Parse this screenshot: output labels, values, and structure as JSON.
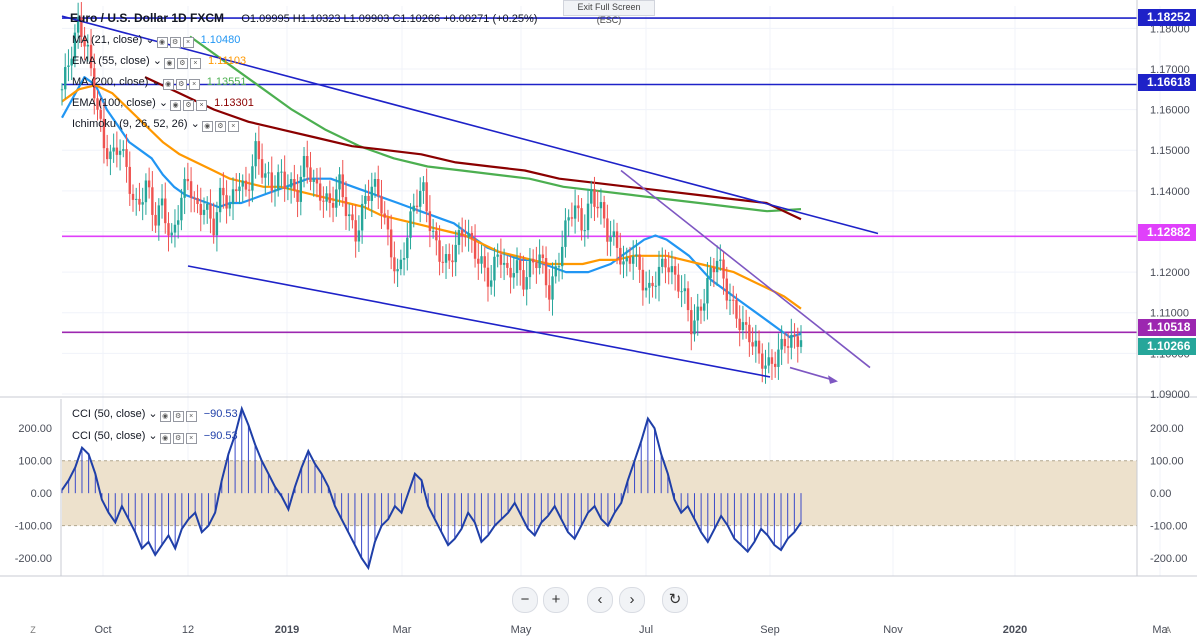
{
  "header": {
    "title": "Euro / U.S. Dollar  1D  FXCM",
    "ohlc": "O1.09995  H1.10323  L1.09903  C1.10266  +0.00271 (+0.25%)"
  },
  "exit_fullscreen_label": "Exit Full Screen (ESC)",
  "indicators": [
    {
      "label": "MA (21, close)",
      "value": "1.10480",
      "color": "#2196f3"
    },
    {
      "label": "EMA (55, close)",
      "value": "1.11103",
      "color": "#ff9800"
    },
    {
      "label": "MA (200, close)",
      "value": "1.13551",
      "color": "#4caf50"
    },
    {
      "label": "EMA (100, close)",
      "value": "1.13301",
      "color": "#8b0000"
    },
    {
      "label": "Ichimoku (9, 26, 52, 26)",
      "value": "",
      "color": "#2196f3"
    }
  ],
  "cci_legends": [
    {
      "label": "CCI (50, close)",
      "value": "−90.53"
    },
    {
      "label": "CCI (50, close)",
      "value": "−90.53"
    }
  ],
  "nav_buttons": [
    "−",
    "+",
    "‹",
    "›",
    "↻"
  ],
  "corner_labels": {
    "left": "Z",
    "right": "A"
  },
  "chart_data": [
    {
      "type": "candlestick",
      "instrument": "EUR/USD",
      "timeframe": "1D",
      "ylim": [
        1.0895,
        1.1855
      ],
      "y_ticks": [
        "1.09000",
        "1.10000",
        "1.11000",
        "1.12000",
        "1.13000",
        "1.14000",
        "1.15000",
        "1.16000",
        "1.17000",
        "1.18000"
      ],
      "x_ticks": [
        "Oct",
        "12",
        "2019",
        "Mar",
        "May",
        "Jul",
        "Sep",
        "Nov",
        "2020",
        "Ma"
      ],
      "price_labels": [
        {
          "value": "1.18252",
          "color": "#1e22c8"
        },
        {
          "value": "1.16618",
          "color": "#1e22c8"
        },
        {
          "value": "1.12882",
          "color": "#e040fb"
        },
        {
          "value": "1.10518",
          "color": "#9c27b0"
        },
        {
          "value": "1.10266",
          "color": "#26a69a"
        }
      ],
      "horizontal_lines": [
        {
          "price": 1.18252,
          "color": "#1e22c8"
        },
        {
          "price": 1.16618,
          "color": "#1e22c8"
        },
        {
          "price": 1.12882,
          "color": "#e040fb"
        },
        {
          "price": 1.10518,
          "color": "#9c27b0"
        }
      ],
      "close_path": [
        1.165,
        1.172,
        1.181,
        1.176,
        1.164,
        1.15,
        1.147,
        1.152,
        1.143,
        1.135,
        1.141,
        1.132,
        1.138,
        1.128,
        1.136,
        1.142,
        1.135,
        1.138,
        1.131,
        1.139,
        1.135,
        1.144,
        1.14,
        1.15,
        1.143,
        1.141,
        1.145,
        1.142,
        1.138,
        1.147,
        1.142,
        1.14,
        1.136,
        1.141,
        1.134,
        1.13,
        1.138,
        1.141,
        1.136,
        1.127,
        1.12,
        1.128,
        1.136,
        1.14,
        1.131,
        1.125,
        1.121,
        1.126,
        1.131,
        1.127,
        1.122,
        1.116,
        1.125,
        1.12,
        1.123,
        1.117,
        1.121,
        1.124,
        1.116,
        1.122,
        1.13,
        1.136,
        1.131,
        1.14,
        1.136,
        1.128,
        1.127,
        1.122,
        1.126,
        1.117,
        1.114,
        1.121,
        1.124,
        1.118,
        1.114,
        1.106,
        1.112,
        1.119,
        1.123,
        1.115,
        1.111,
        1.108,
        1.104,
        1.098,
        1.096,
        1.1,
        1.104,
        1.102,
        1.1027
      ],
      "moving_averages": [
        {
          "name": "MA 21",
          "color": "#2196f3",
          "values": [
            1.158,
            1.163,
            1.168,
            1.166,
            1.16,
            1.156,
            1.152,
            1.15,
            1.148,
            1.144,
            1.141,
            1.139,
            1.138,
            1.137,
            1.136,
            1.137,
            1.137,
            1.138,
            1.139,
            1.14,
            1.141,
            1.142,
            1.143,
            1.143,
            1.143,
            1.142,
            1.141,
            1.14,
            1.139,
            1.138,
            1.137,
            1.136,
            1.135,
            1.134,
            1.133,
            1.132,
            1.13,
            1.128,
            1.126,
            1.125,
            1.124,
            1.123,
            1.123,
            1.122,
            1.121,
            1.12,
            1.12,
            1.12,
            1.121,
            1.122,
            1.124,
            1.126,
            1.128,
            1.129,
            1.128,
            1.126,
            1.124,
            1.121,
            1.118,
            1.116,
            1.114,
            1.112,
            1.11,
            1.108,
            1.106,
            1.104,
            1.1048
          ]
        },
        {
          "name": "EMA 55",
          "color": "#ff9800",
          "values": [
            1.162,
            1.165,
            1.166,
            1.164,
            1.16,
            1.156,
            1.152,
            1.149,
            1.147,
            1.145,
            1.143,
            1.142,
            1.141,
            1.141,
            1.14,
            1.139,
            1.138,
            1.137,
            1.136,
            1.134,
            1.133,
            1.132,
            1.131,
            1.13,
            1.129,
            1.127,
            1.125,
            1.124,
            1.123,
            1.122,
            1.122,
            1.122,
            1.123,
            1.123,
            1.124,
            1.124,
            1.124,
            1.123,
            1.122,
            1.121,
            1.12,
            1.118,
            1.116,
            1.114,
            1.111
          ]
        },
        {
          "name": "MA 200",
          "color": "#4caf50",
          "values": [
            1.178,
            1.172,
            1.166,
            1.16,
            1.155,
            1.151,
            1.148,
            1.146,
            1.145,
            1.144,
            1.143,
            1.141,
            1.14,
            1.139,
            1.138,
            1.137,
            1.136,
            1.135,
            1.1355
          ]
        },
        {
          "name": "EMA 100",
          "color": "#8b0000",
          "values": [
            1.168,
            1.164,
            1.16,
            1.157,
            1.155,
            1.153,
            1.151,
            1.15,
            1.149,
            1.147,
            1.146,
            1.145,
            1.143,
            1.142,
            1.141,
            1.14,
            1.139,
            1.138,
            1.137,
            1.133
          ]
        }
      ],
      "trend_lines": [
        {
          "name": "upper channel",
          "color": "#1e22c8",
          "from": [
            "2018-09-20",
            1.183
          ],
          "to": [
            "2019-10-27",
            1.1295
          ]
        },
        {
          "name": "lower channel",
          "color": "#1e22c8",
          "from": [
            "2018-11-12",
            1.1215
          ],
          "to": [
            "2019-08-31",
            1.0942
          ]
        },
        {
          "name": "falling wedge",
          "color": "#7e57c2",
          "from": [
            "2019-06-25",
            1.145
          ],
          "to": [
            "2019-10-20",
            1.0965
          ]
        }
      ]
    },
    {
      "type": "cci",
      "name": "CCI (50, close)",
      "ylim": [
        -255,
        290
      ],
      "y_ticks": [
        "200.00",
        "100.00",
        "0.00",
        "-100.00",
        "-200.00"
      ],
      "band": [
        -100,
        100
      ],
      "values": [
        10,
        40,
        80,
        140,
        120,
        60,
        -20,
        -60,
        -90,
        -40,
        -80,
        -120,
        -170,
        -150,
        -190,
        -160,
        -130,
        -170,
        -110,
        -80,
        -60,
        -120,
        -100,
        -60,
        40,
        120,
        180,
        260,
        210,
        150,
        100,
        60,
        20,
        -10,
        -50,
        20,
        80,
        130,
        90,
        60,
        20,
        -40,
        -80,
        -120,
        -160,
        -200,
        -230,
        -150,
        -100,
        -80,
        -40,
        -60,
        0,
        60,
        40,
        -40,
        -80,
        -120,
        -160,
        -140,
        -110,
        -60,
        -90,
        -150,
        -130,
        -100,
        -80,
        -60,
        -30,
        -70,
        -110,
        -130,
        -90,
        -70,
        -40,
        -80,
        -120,
        -140,
        -100,
        -60,
        -40,
        -80,
        -100,
        -60,
        -30,
        40,
        100,
        160,
        230,
        200,
        120,
        60,
        -20,
        -60,
        -40,
        -80,
        -120,
        -150,
        -110,
        -70,
        -100,
        -140,
        -160,
        -180,
        -150,
        -110,
        -130,
        -160,
        -175,
        -140,
        -120,
        -90.53
      ]
    }
  ]
}
